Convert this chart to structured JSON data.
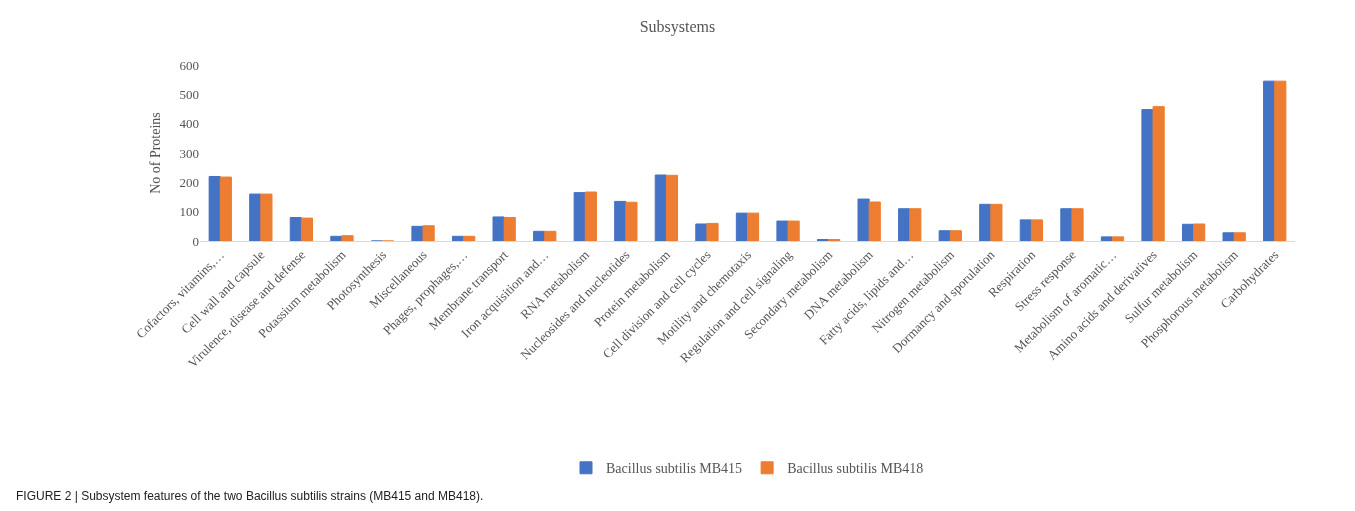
{
  "chart_data": {
    "type": "bar",
    "title": "Subsystems",
    "ylabel": "No of Proteins",
    "categories": [
      "Cofactors, vitamins,…",
      "Cell wall and capsule",
      "Virulence, disease and defense",
      "Potassium metabolism",
      "Photosynthesis",
      "Miscellaneous",
      "Phages, prophages,…",
      "Membrane transport",
      "Iron acquisition and…",
      "RNA metabolism",
      "Nucleosides and nucleotides",
      "Protein metabolism",
      "Cell division and cell cycles",
      "Motility and chemotaxis",
      "Regulation and cell signaling",
      "Secondary metabolism",
      "DNA metabolism",
      "Fatty acids, lipids and…",
      "Nitrogen metabolism",
      "Dormancy and sporulation",
      "Respiration",
      "Stress response",
      "Metabolism of aromatic…",
      "Amino acids and derivatives",
      "Sulfur metabolism",
      "Phosphorous metabolism",
      "Carbohydrates"
    ],
    "series": [
      {
        "name": "Bacillus subtilis MB415",
        "color": "#4472c4",
        "values": [
          220,
          160,
          80,
          16,
          0,
          50,
          16,
          82,
          33,
          165,
          135,
          225,
          58,
          95,
          68,
          5,
          143,
          110,
          35,
          125,
          72,
          110,
          14,
          448,
          57,
          28,
          545
        ]
      },
      {
        "name": "Bacillus subtilis MB418",
        "color": "#ed7d31",
        "values": [
          218,
          160,
          78,
          18,
          0,
          52,
          16,
          80,
          33,
          167,
          132,
          224,
          60,
          95,
          68,
          5,
          133,
          110,
          35,
          125,
          72,
          110,
          14,
          458,
          58,
          28,
          545
        ]
      }
    ],
    "ylim": [
      0,
      600
    ],
    "yticks": [
      0,
      100,
      200,
      300,
      400,
      500,
      600
    ],
    "legend": "bottom",
    "annotations": [
      "FIGURE 2 | Subsystem features of the two Bacillus subtilis strains (MB415 and MB418)."
    ]
  }
}
